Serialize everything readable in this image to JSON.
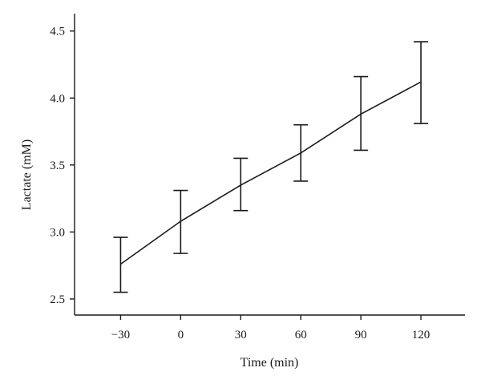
{
  "chart_data": {
    "type": "line",
    "title": "",
    "xlabel": "Time (min)",
    "ylabel": "Lactate (mM)",
    "x": [
      -30,
      0,
      30,
      60,
      90,
      120
    ],
    "x_tick_labels": [
      "−30",
      "0",
      "30",
      "60",
      "90",
      "120"
    ],
    "xlim": [
      -53,
      142
    ],
    "ylim": [
      2.38,
      4.63
    ],
    "y_ticks": [
      2.5,
      3.0,
      3.5,
      4.0,
      4.5
    ],
    "y_tick_labels": [
      "2.5",
      "3.0",
      "3.5",
      "4.0",
      "4.5"
    ],
    "series": [
      {
        "values": [
          2.76,
          3.08,
          3.35,
          3.59,
          3.88,
          4.12
        ],
        "error_upper": [
          2.96,
          3.31,
          3.55,
          3.8,
          4.16,
          4.42
        ],
        "error_lower": [
          2.55,
          2.84,
          3.16,
          3.38,
          3.61,
          3.81
        ]
      }
    ],
    "grid": false,
    "legend": "none",
    "colors": {
      "line": "#1a1a1a"
    }
  }
}
